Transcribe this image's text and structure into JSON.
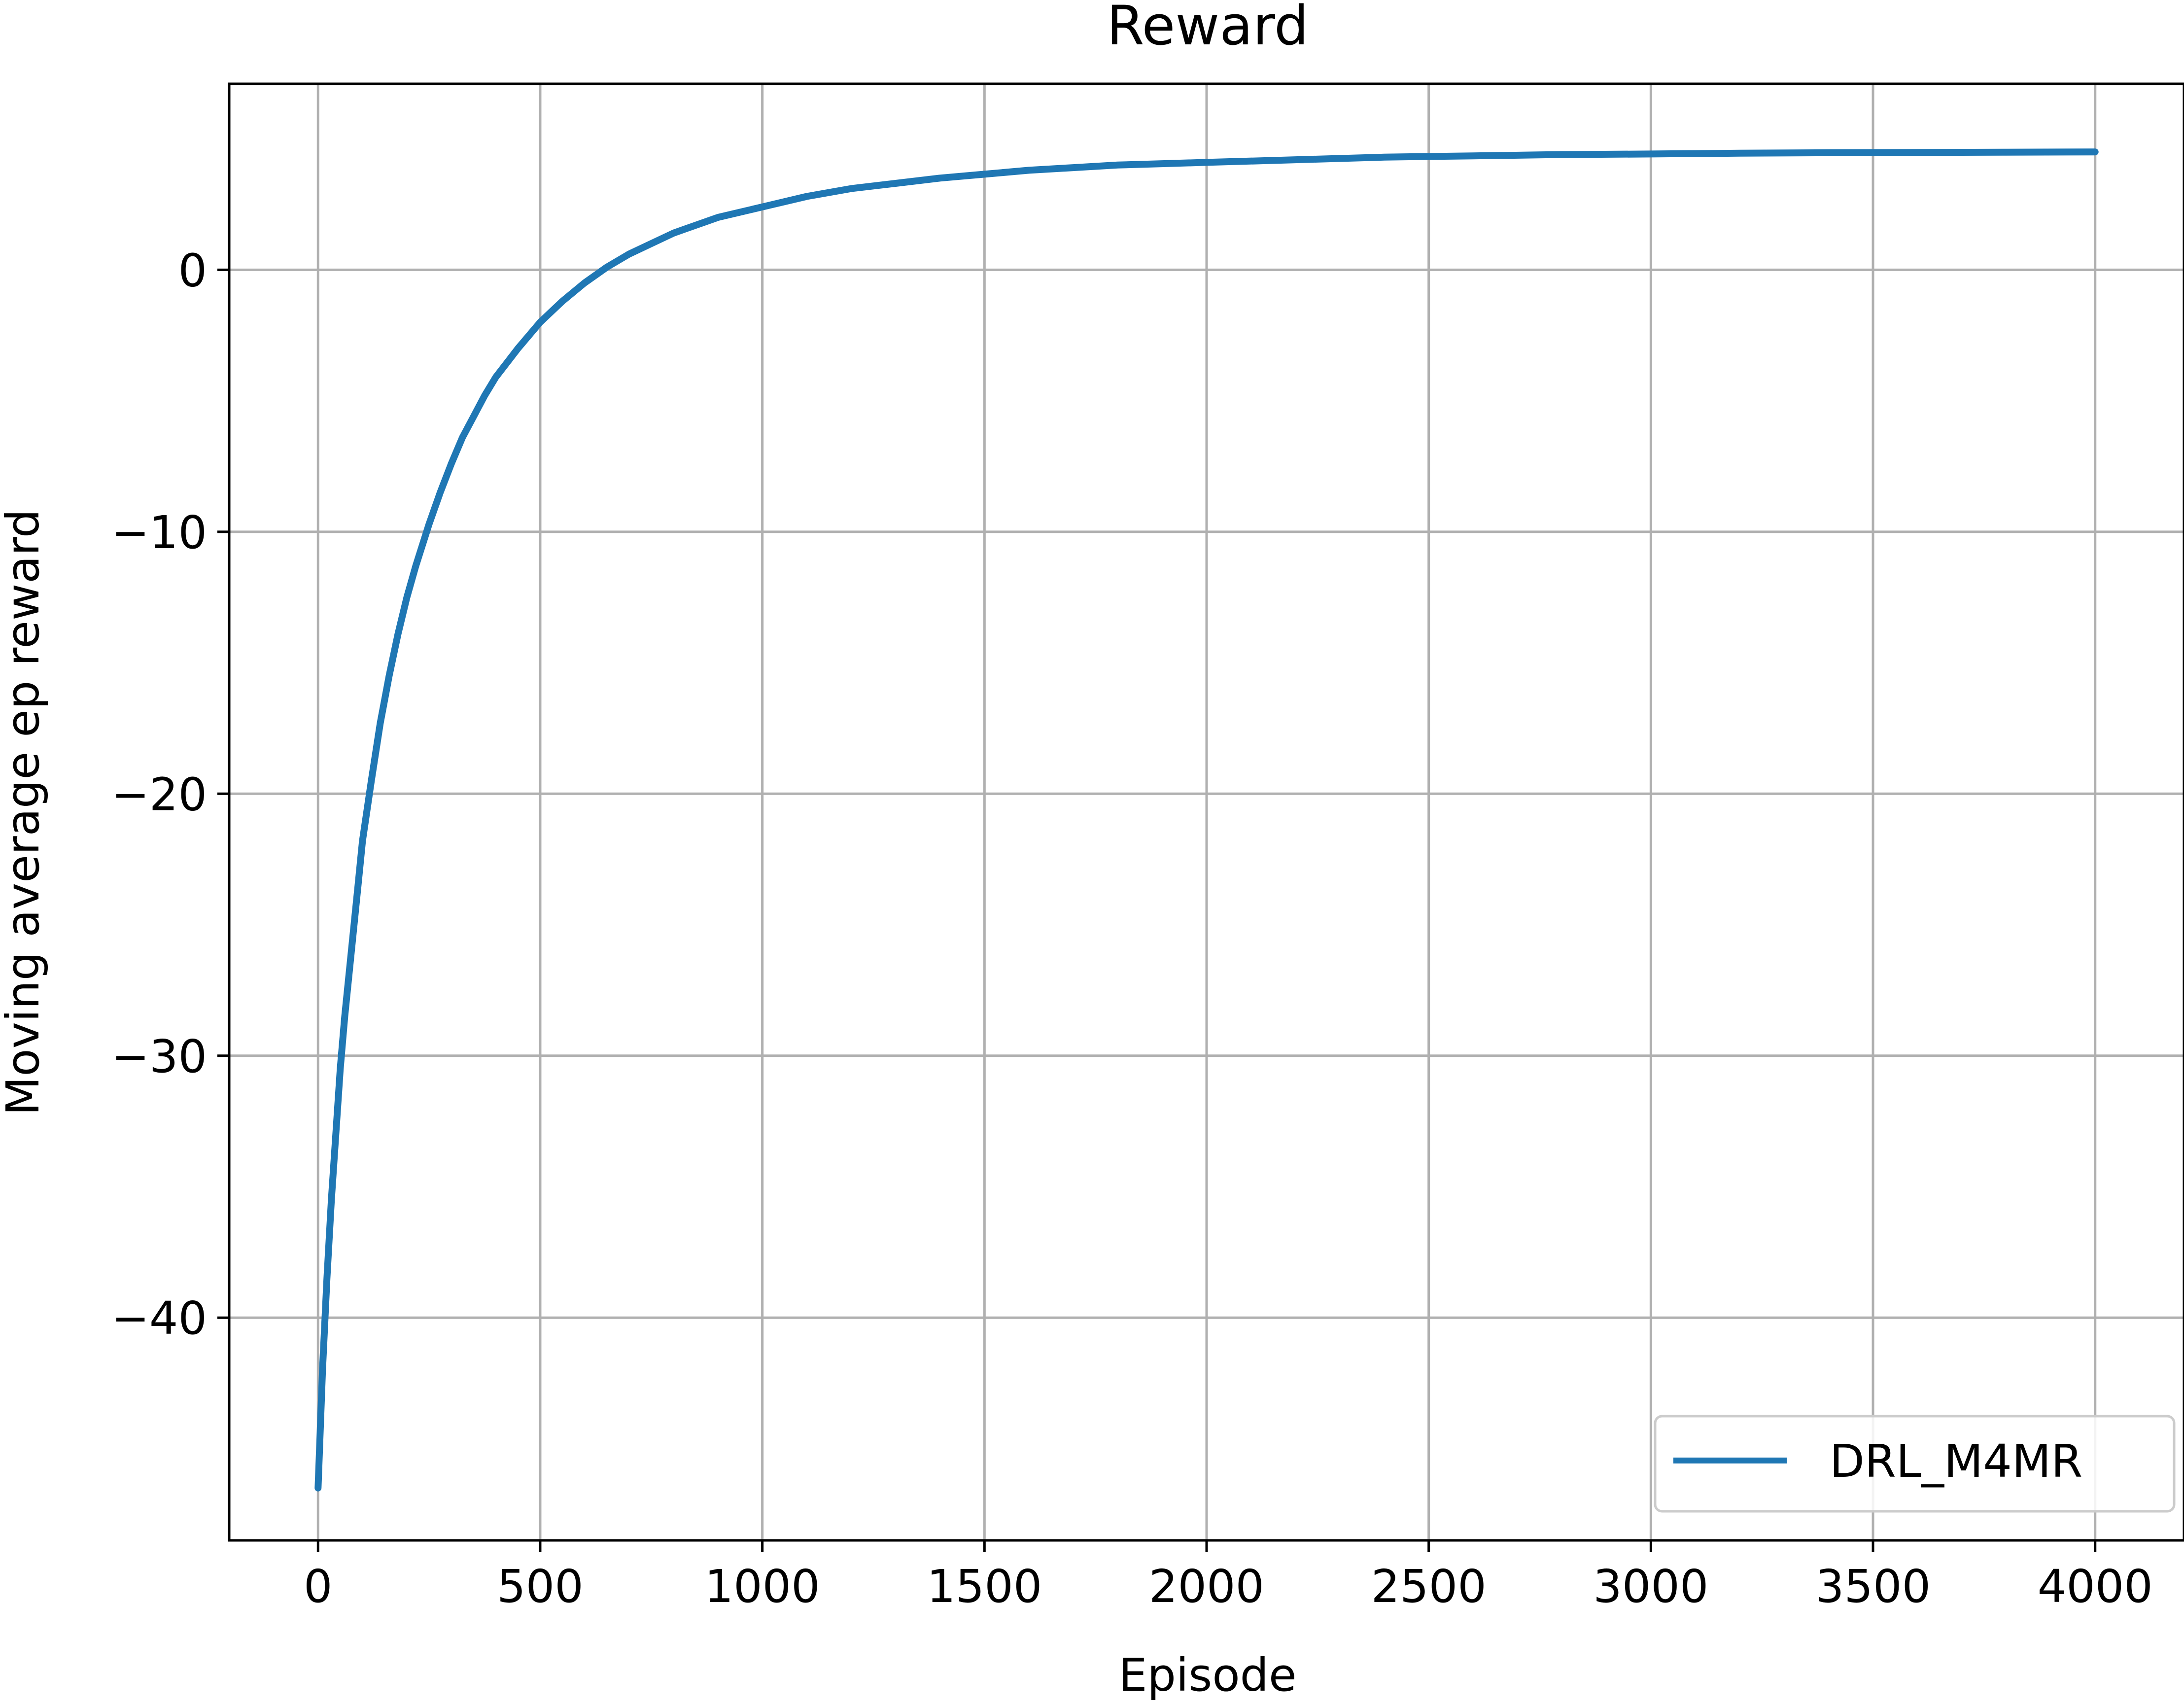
{
  "chart_data": {
    "type": "line",
    "title": "Reward",
    "xlabel": "Episode",
    "ylabel": "Moving average ep reward",
    "xlim": [
      -200,
      4200
    ],
    "ylim": [
      -48.5,
      7.1
    ],
    "xticks": [
      0,
      500,
      1000,
      1500,
      2000,
      2500,
      3000,
      3500,
      4000
    ],
    "xtick_labels": [
      "0",
      "500",
      "1000",
      "1500",
      "2000",
      "2500",
      "3000",
      "3500",
      "4000"
    ],
    "yticks": [
      0,
      -10,
      -20,
      -30,
      -40
    ],
    "ytick_labels": [
      "0",
      "−10",
      "−20",
      "−30",
      "−40"
    ],
    "grid": true,
    "legend_position": "lower-right",
    "series": [
      {
        "name": "DRL_M4MR",
        "color": "#1f77b4",
        "x": [
          0,
          10,
          20,
          30,
          40,
          50,
          60,
          75,
          90,
          100,
          120,
          140,
          160,
          180,
          200,
          220,
          250,
          275,
          300,
          325,
          350,
          375,
          400,
          450,
          500,
          550,
          600,
          650,
          700,
          750,
          800,
          850,
          900,
          950,
          1000,
          1100,
          1200,
          1300,
          1400,
          1500,
          1600,
          1700,
          1800,
          1900,
          2000,
          2200,
          2400,
          2600,
          2800,
          3000,
          3200,
          3400,
          3600,
          3800,
          4000
        ],
        "y": [
          -46.5,
          -42.0,
          -38.5,
          -35.5,
          -33.0,
          -30.5,
          -28.5,
          -26.0,
          -23.5,
          -21.8,
          -19.5,
          -17.3,
          -15.5,
          -13.9,
          -12.5,
          -11.3,
          -9.7,
          -8.5,
          -7.4,
          -6.4,
          -5.6,
          -4.8,
          -4.1,
          -3.0,
          -2.0,
          -1.2,
          -0.5,
          0.1,
          0.6,
          1.0,
          1.4,
          1.7,
          2.0,
          2.2,
          2.4,
          2.8,
          3.1,
          3.3,
          3.5,
          3.65,
          3.8,
          3.9,
          4.0,
          4.05,
          4.1,
          4.2,
          4.3,
          4.35,
          4.4,
          4.42,
          4.45,
          4.47,
          4.48,
          4.49,
          4.5
        ]
      }
    ]
  }
}
